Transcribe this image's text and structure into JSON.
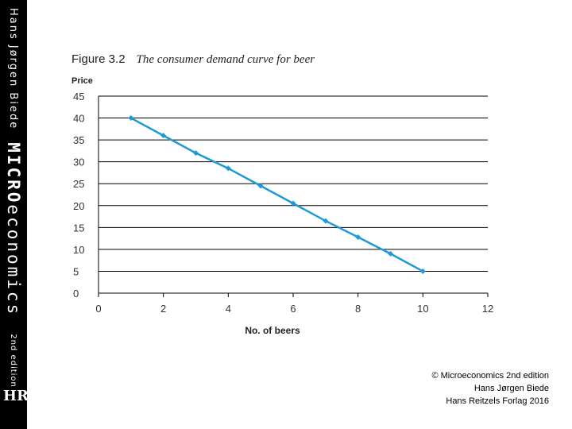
{
  "spine": {
    "author": "Hans Jørgen Biede",
    "title_bold": "MICRO",
    "title_rest": "economics",
    "edition": "2nd edition",
    "logo": "HR"
  },
  "figure": {
    "number": "Figure 3.2",
    "caption": "The consumer demand curve for beer"
  },
  "chart_data": {
    "type": "line",
    "title": "The consumer demand curve for beer",
    "xlabel": "No. of beers",
    "ylabel": "Price",
    "xlim": [
      0,
      12
    ],
    "ylim": [
      0,
      45
    ],
    "x_ticks": [
      0,
      2,
      4,
      6,
      8,
      10,
      12
    ],
    "y_ticks": [
      0,
      5,
      10,
      15,
      20,
      25,
      30,
      35,
      40,
      45
    ],
    "grid": "horizontal",
    "series": [
      {
        "color": "#1f9ad6",
        "x": [
          1,
          2,
          3,
          4,
          5,
          6,
          7,
          8,
          9,
          10
        ],
        "y": [
          40,
          36,
          32,
          28.5,
          24.5,
          20.5,
          16.5,
          12.8,
          9,
          5
        ]
      }
    ]
  },
  "copyright": {
    "line1": "© Microeconomics 2nd edition",
    "line2": "Hans Jørgen Biede",
    "line3": "Hans Reitzels Forlag 2016"
  }
}
